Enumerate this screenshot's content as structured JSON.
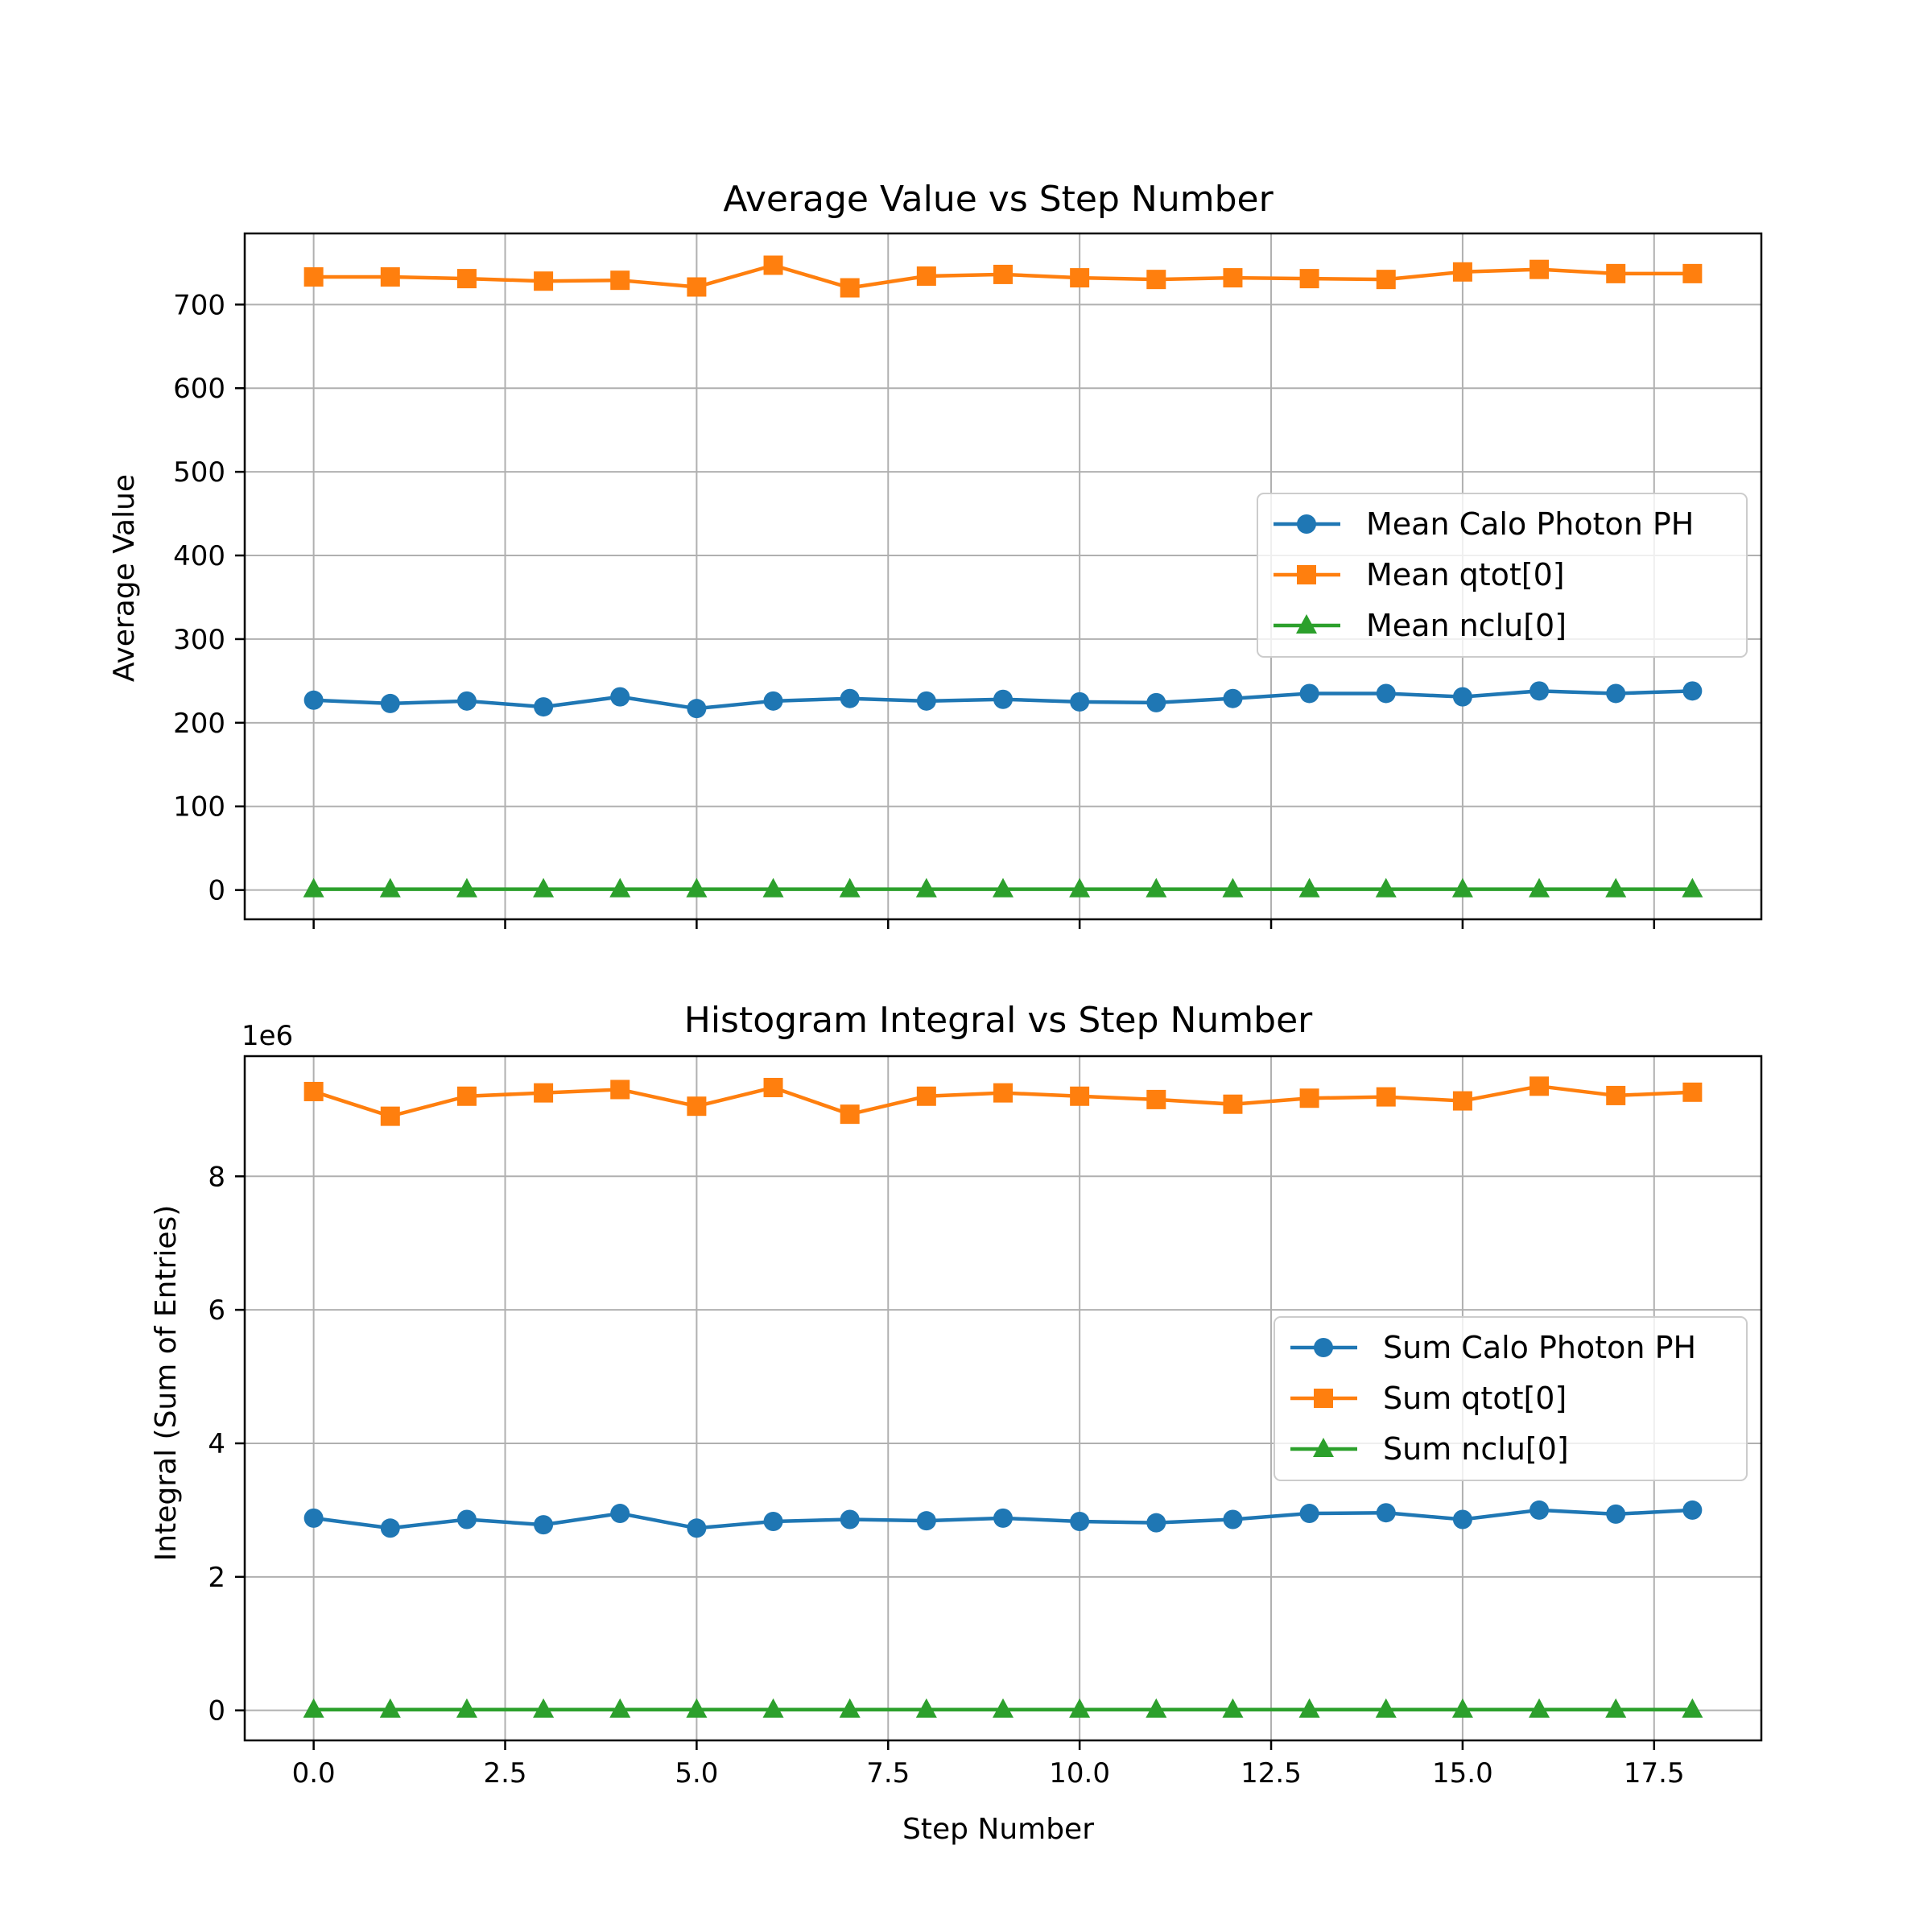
{
  "colors": {
    "series0": "#1f77b4",
    "series1": "#ff7f0e",
    "series2": "#2ca02c"
  },
  "chart_data": [
    {
      "type": "line",
      "title": "Average Value vs Step Number",
      "xlabel": "",
      "ylabel": "Average Value",
      "xlim": [
        -0.9,
        18.9
      ],
      "ylim": [
        -35,
        785
      ],
      "xticks": [
        0,
        2.5,
        5,
        7.5,
        10,
        12.5,
        15,
        17.5
      ],
      "xtick_labels": [],
      "yticks": [
        0,
        100,
        200,
        300,
        400,
        500,
        600,
        700
      ],
      "ytick_labels": [
        "0",
        "100",
        "200",
        "300",
        "400",
        "500",
        "600",
        "700"
      ],
      "offset_text": "",
      "grid": true,
      "legend_position": "center-right",
      "x": [
        0,
        1,
        2,
        3,
        4,
        5,
        6,
        7,
        8,
        9,
        10,
        11,
        12,
        13,
        14,
        15,
        16,
        17,
        18
      ],
      "series": [
        {
          "name": "Mean Calo Photon PH",
          "marker": "circle",
          "values": [
            227,
            223,
            226,
            219,
            231,
            217,
            226,
            229,
            226,
            228,
            225,
            224,
            229,
            235,
            235,
            231,
            238,
            235,
            238
          ]
        },
        {
          "name": "Mean qtot[0]",
          "marker": "square",
          "values": [
            733,
            733,
            731,
            728,
            729,
            721,
            747,
            720,
            734,
            736,
            732,
            730,
            732,
            731,
            730,
            739,
            742,
            737,
            737
          ]
        },
        {
          "name": "Mean nclu[0]",
          "marker": "triangle",
          "values": [
            1,
            1,
            1,
            1,
            1,
            1,
            1,
            1,
            1,
            1,
            1,
            1,
            1,
            1,
            1,
            1,
            1,
            1,
            1
          ]
        }
      ]
    },
    {
      "type": "line",
      "title": "Histogram Integral vs Step Number",
      "xlabel": "Step Number",
      "ylabel": "Integral (Sum of Entries)",
      "xlim": [
        -0.9,
        18.9
      ],
      "ylim": [
        -0.45,
        9.8
      ],
      "xticks": [
        0,
        2.5,
        5,
        7.5,
        10,
        12.5,
        15,
        17.5
      ],
      "xtick_labels": [
        "0.0",
        "2.5",
        "5.0",
        "7.5",
        "10.0",
        "12.5",
        "15.0",
        "17.5"
      ],
      "yticks": [
        0,
        2,
        4,
        6,
        8
      ],
      "ytick_labels": [
        "0",
        "2",
        "4",
        "6",
        "8"
      ],
      "offset_text": "1e6",
      "grid": true,
      "legend_position": "center-right",
      "x": [
        0,
        1,
        2,
        3,
        4,
        5,
        6,
        7,
        8,
        9,
        10,
        11,
        12,
        13,
        14,
        15,
        16,
        17,
        18
      ],
      "series": [
        {
          "name": "Sum Calo Photon PH",
          "marker": "circle",
          "values": [
            2.88,
            2.73,
            2.86,
            2.78,
            2.95,
            2.73,
            2.83,
            2.86,
            2.84,
            2.88,
            2.83,
            2.81,
            2.86,
            2.95,
            2.96,
            2.86,
            3.0,
            2.94,
            3.0
          ]
        },
        {
          "name": "Sum qtot[0]",
          "marker": "square",
          "values": [
            9.27,
            8.9,
            9.2,
            9.25,
            9.3,
            9.05,
            9.33,
            8.93,
            9.2,
            9.25,
            9.2,
            9.15,
            9.08,
            9.17,
            9.19,
            9.13,
            9.35,
            9.21,
            9.26
          ]
        },
        {
          "name": "Sum nclu[0]",
          "marker": "triangle",
          "values": [
            0.012,
            0.012,
            0.012,
            0.012,
            0.012,
            0.012,
            0.012,
            0.012,
            0.012,
            0.012,
            0.012,
            0.012,
            0.012,
            0.012,
            0.012,
            0.012,
            0.012,
            0.012,
            0.012
          ]
        }
      ]
    }
  ]
}
